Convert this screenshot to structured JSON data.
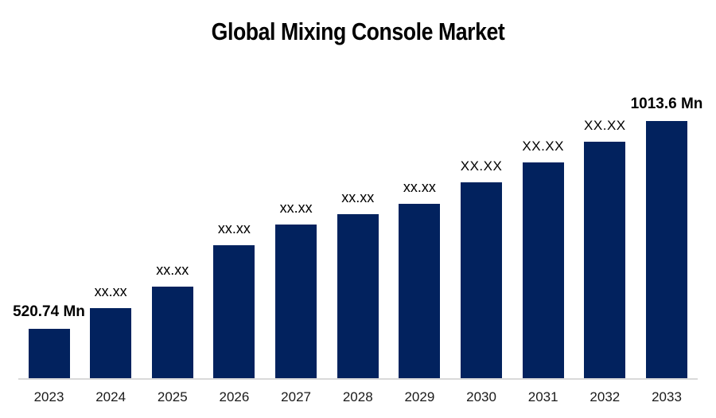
{
  "chart_data": {
    "type": "bar",
    "title": "Global Mixing Console Market",
    "unit": "Mn",
    "categories": [
      "2023",
      "2024",
      "2025",
      "2026",
      "2027",
      "2028",
      "2029",
      "2030",
      "2031",
      "2032",
      "2033"
    ],
    "values": [
      520.74,
      570,
      621,
      719,
      768,
      793,
      817,
      868,
      915,
      964,
      1013.6
    ],
    "values_note": "Only 2023 (520.74 Mn) and 2033 (1013.6 Mn) are shown numerically; intermediate bars are masked as xx.xx and their values are estimated from bar heights",
    "bar_labels": [
      "520.74 Mn",
      "xx.xx",
      "xx.xx",
      "xx.xx",
      "xx.xx",
      "xx.xx",
      "xx.xx",
      "XX.XX",
      "XX.XX",
      "XX.XX",
      "1013.6 Mn"
    ],
    "label_emphasis": [
      "bold",
      "small",
      "small",
      "small",
      "small",
      "small",
      "small",
      "large",
      "large",
      "large",
      "bold"
    ],
    "first_bar_value_label": "520.74 Mn",
    "last_bar_value_label": "1013.6 Mn",
    "bar_color": "#02225e",
    "axis_line_color": "#d9d9d9",
    "title_color": "#000000",
    "tick_color": "#1a1a1a",
    "background_color": "#ffffff",
    "xlabel": "",
    "ylabel": "",
    "legend": "none",
    "grid": "off",
    "y_axis": "hidden, bars not zero-based"
  }
}
